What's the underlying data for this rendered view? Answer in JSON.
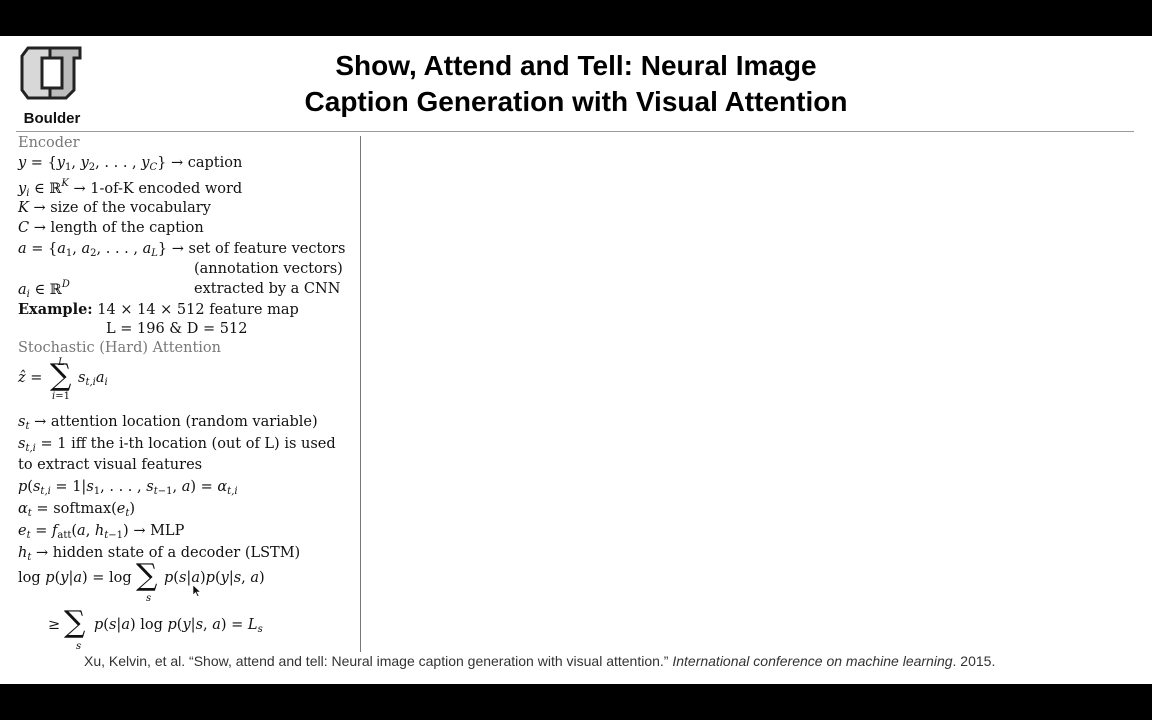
{
  "header": {
    "logo_text": "Boulder",
    "title_line1": "Show, Attend and Tell: Neural Image",
    "title_line2": "Caption Generation with Visual Attention"
  },
  "encoder": {
    "heading": "Encoder",
    "caption": "→ caption",
    "encoded_word": "→ 1-of-K encoded word",
    "vocab": "→ size of the vocabulary",
    "length": "→ length of the caption",
    "feature_set": "→ set of feature vectors",
    "annotation": "(annotation vectors)",
    "cnn": "extracted by a CNN",
    "example_label": "Example:",
    "example_map": "14 × 14 × 512 feature map",
    "example_dims": "L = 196 & D = 512"
  },
  "attention": {
    "heading": "Stochastic (Hard) Attention",
    "location": "→ attention location (random variable)",
    "iff_line1": "iff the i-th location (out of L) is used",
    "iff_line2": "to extract visual features",
    "mlp": "→ MLP",
    "hidden": "→ hidden state of a decoder (LSTM)"
  },
  "footer": {
    "citation": "Xu, Kelvin, et al. “Show, attend and tell: Neural image caption generation with visual attention.” ",
    "venue": "International conference on machine learning",
    "year": ". 2015."
  },
  "colors": {
    "section_heading": "#777777",
    "divider": "#9a9a9a",
    "letterbox": "#000000"
  },
  "icons": [
    "cu-logo-icon",
    "mouse-cursor-icon"
  ]
}
